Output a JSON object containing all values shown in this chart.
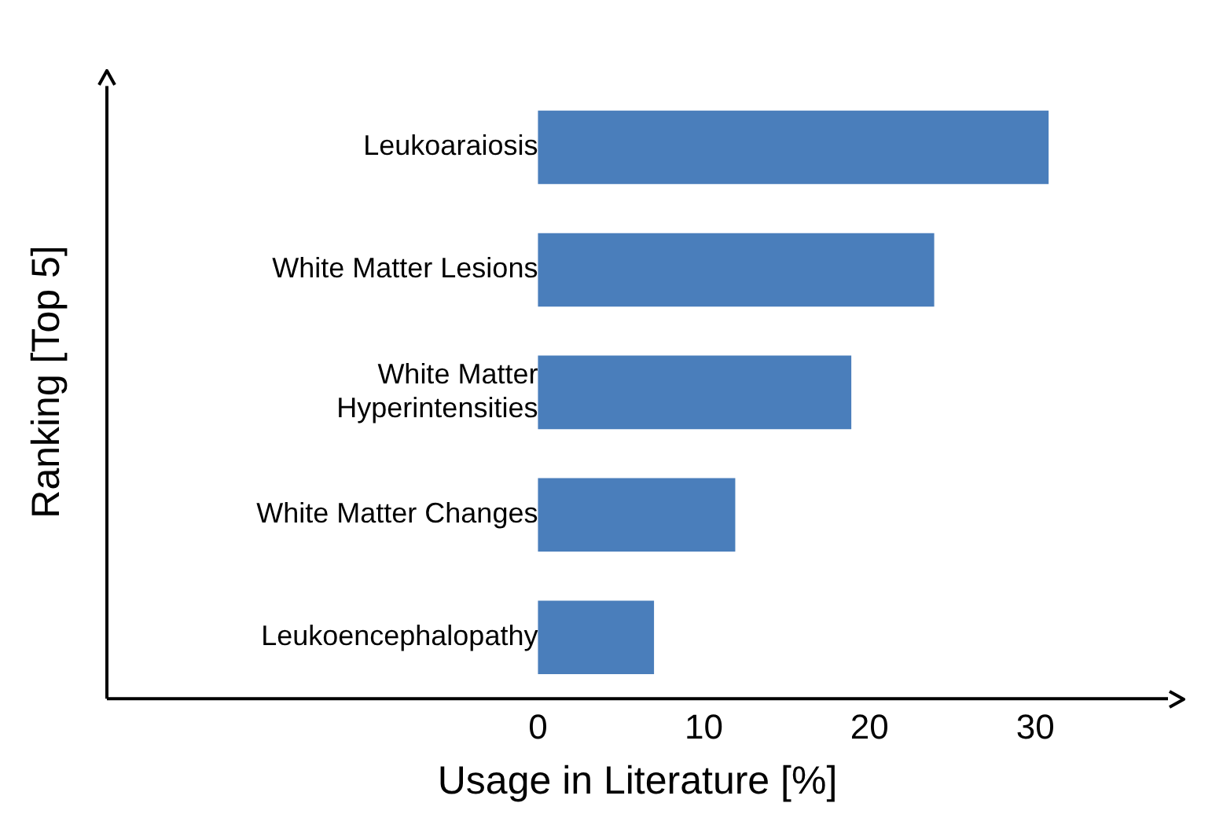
{
  "chart_data": {
    "type": "bar",
    "orientation": "horizontal",
    "xlabel": "Usage in Literature [%]",
    "ylabel": "Ranking [Top 5]",
    "categories": [
      "Leukoaraiosis",
      "White Matter Lesions",
      "White Matter Hyperintensities",
      "White Matter Changes",
      "Leukoencephalopathy"
    ],
    "values": [
      30.8,
      23.9,
      18.9,
      11.9,
      7.0
    ],
    "color": "#4a7ebb",
    "xlim": [
      -26,
      38
    ],
    "xticks": [
      0,
      10,
      20,
      30
    ],
    "grid": false,
    "legend": false
  }
}
